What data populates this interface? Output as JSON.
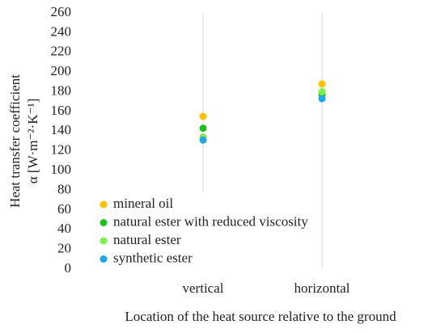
{
  "chart_data": {
    "type": "scatter",
    "ylabel": [
      "Heat transfer coefficient",
      "α [W·m⁻²·K⁻¹]"
    ],
    "xlabel": "Location of the heat source relative to the ground",
    "categories": [
      "vertical",
      "horizontal"
    ],
    "series": [
      {
        "name": "mineral oil",
        "color": "#ffc000",
        "values": [
          155,
          188
        ]
      },
      {
        "name": "natural ester with reduced viscosity",
        "color": "#1cc21c",
        "values": [
          143,
          177
        ]
      },
      {
        "name": "natural ester",
        "color": "#7cf04a",
        "values": [
          134,
          180
        ]
      },
      {
        "name": "synthetic ester",
        "color": "#1fa8e8",
        "values": [
          131,
          173
        ]
      }
    ],
    "ylim": [
      0,
      260
    ],
    "yticks": [
      0,
      20,
      40,
      60,
      80,
      100,
      120,
      140,
      160,
      180,
      200,
      220,
      240,
      260
    ],
    "grid": "x",
    "legend": "lower left"
  }
}
